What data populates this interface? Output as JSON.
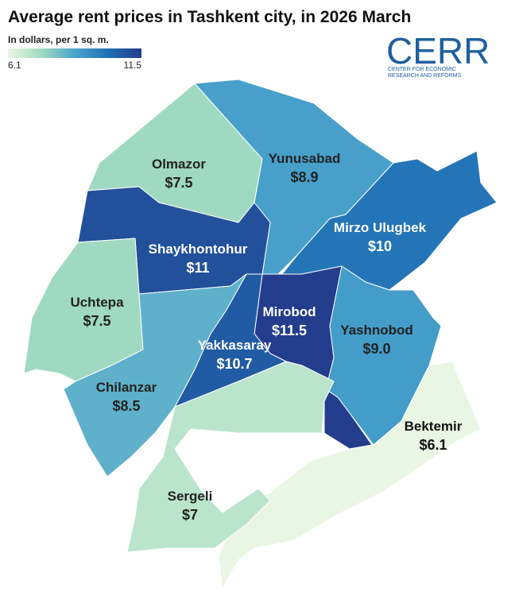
{
  "chart_data": {
    "type": "choropleth",
    "title": "Average rent prices in Tashkent city, in 2026 March",
    "subtitle": "In dollars, per 1 sq. m.",
    "categories": [
      "Olmazor",
      "Yunusabad",
      "Shaykhontohur",
      "Mirzo Ulugbek",
      "Uchtepa",
      "Mirobod",
      "Yashnobod",
      "Yakkasaray",
      "Chilanzar",
      "Bektemir",
      "Sergeli"
    ],
    "values": [
      7.5,
      8.9,
      11,
      10,
      7.5,
      11.5,
      9.0,
      10.7,
      8.5,
      6.1,
      7
    ],
    "value_labels": [
      "$7.5",
      "$8.9",
      "$11",
      "$10",
      "$7.5",
      "$11.5",
      "$9.0",
      "$10.7",
      "$8.5",
      "$6.1",
      "$7"
    ],
    "colorscale": [
      "#eaf6e4",
      "#a3dbc1",
      "#4ba4cc",
      "#1f6fb4",
      "#243d8c"
    ],
    "clim": [
      6.1,
      11.5
    ],
    "cticks": [
      6.1,
      11.5
    ],
    "logo": {
      "name": "CERR",
      "lines": [
        "CENTER FOR ECONOMIC",
        "RESEARCH AND REFORMS"
      ]
    }
  }
}
